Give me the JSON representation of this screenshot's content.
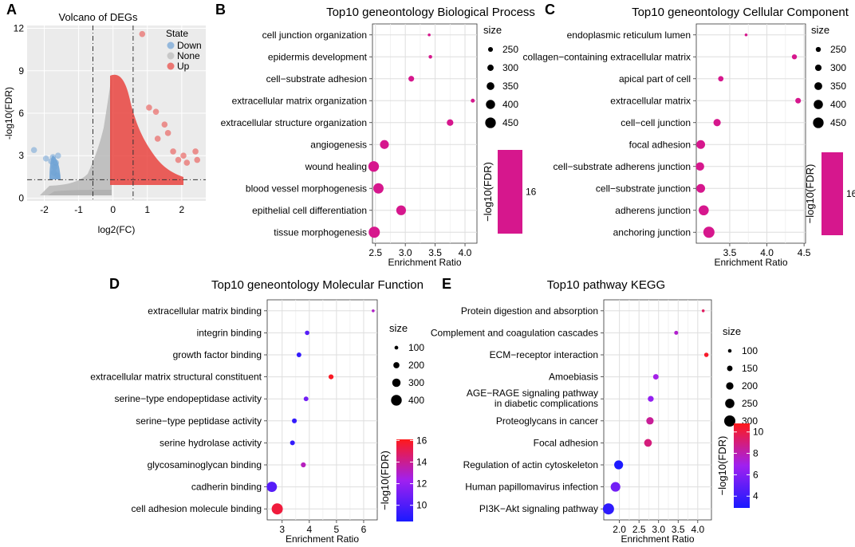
{
  "chart_data": [
    {
      "id": "volcano",
      "panel_label": "A",
      "type": "scatter",
      "title": "Volcano of DEGs",
      "xlabel": "log2(FC)",
      "ylabel": "-log10(FDR)",
      "xlim": [
        -2.5,
        2.7
      ],
      "ylim": [
        -0.2,
        12.2
      ],
      "xticks": [
        -2,
        -1,
        0,
        1,
        2
      ],
      "xtick_labels": [
        "-2",
        "-1",
        "0",
        "1",
        "2"
      ],
      "yticks": [
        0,
        3,
        6,
        9,
        12
      ],
      "ytick_labels": [
        "0",
        "3",
        "6",
        "9",
        "12"
      ],
      "thresholds": {
        "fc": 0.585,
        "fdr": 1.3
      },
      "legend_title": "State",
      "legend": [
        {
          "name": "Down",
          "color": "#6fa3d6"
        },
        {
          "name": "None",
          "color": "#b9b9b9"
        },
        {
          "name": "Up",
          "color": "#e9443f"
        }
      ],
      "series": [
        {
          "name": "Down",
          "points": [
            [
              -2.3,
              3.4
            ],
            [
              -1.95,
              2.8
            ],
            [
              -1.8,
              2.6
            ],
            [
              -1.7,
              2.2
            ],
            [
              -1.6,
              3.0
            ],
            [
              -1.72,
              1.8
            ],
            [
              -1.66,
              2.5
            ],
            [
              -1.62,
              1.6
            ],
            [
              -1.75,
              2.9
            ]
          ]
        },
        {
          "name": "Up",
          "points": [
            [
              0.85,
              11.6
            ],
            [
              1.25,
              6.1
            ],
            [
              1.05,
              6.4
            ],
            [
              1.5,
              5.2
            ],
            [
              1.75,
              3.3
            ],
            [
              1.9,
              2.7
            ],
            [
              2.05,
              3.0
            ],
            [
              2.15,
              2.5
            ],
            [
              2.4,
              3.3
            ],
            [
              2.45,
              2.7
            ],
            [
              1.3,
              4.2
            ],
            [
              1.6,
              4.6
            ]
          ]
        }
      ]
    },
    {
      "id": "bp",
      "panel_label": "B",
      "type": "scatter",
      "title": "Top10 geneontology Biological Process",
      "xlabel": "Enrichment Ratio",
      "xlim": [
        2.45,
        4.2
      ],
      "xticks": [
        2.5,
        3.0,
        3.5,
        4.0
      ],
      "xtick_labels": [
        "2.5",
        "3.0",
        "3.5",
        "4.0"
      ],
      "categories": [
        "cell junction organization",
        "epidermis development",
        "cell−substrate adhesion",
        "extracellular matrix organization",
        "extracellular structure organization",
        "angiogenesis",
        "wound healing",
        "blood vessel morphogenesis",
        "epithelial cell differentiation",
        "tissue morphogenesis"
      ],
      "values": [
        3.4,
        3.42,
        3.1,
        4.13,
        3.75,
        2.65,
        2.47,
        2.55,
        2.93,
        2.48
      ],
      "sizes": [
        180,
        205,
        280,
        220,
        310,
        390,
        450,
        440,
        420,
        470
      ],
      "fdr": [
        16,
        16,
        16,
        16,
        16,
        16,
        16,
        16,
        16,
        16
      ],
      "size_legend": {
        "title": "size",
        "levels": [
          250,
          300,
          350,
          400,
          450
        ],
        "labels": [
          "250",
          "300",
          "350",
          "400",
          "450"
        ],
        "range": [
          180,
          470
        ]
      },
      "color_legend": {
        "title": "−log10(FDR)",
        "labels": [
          "16"
        ],
        "min": 15.5,
        "max": 16.5,
        "colors": [
          "#d6178d",
          "#d6178d"
        ]
      },
      "color_fixed": "#d6178d"
    },
    {
      "id": "cc",
      "panel_label": "C",
      "type": "scatter",
      "title": "Top10 geneontology Cellular Component",
      "xlabel": "Enrichment Ratio",
      "xlim": [
        3.05,
        4.52
      ],
      "xticks": [
        3.5,
        4.0,
        4.5
      ],
      "xtick_labels": [
        "3.5",
        "4.0",
        "4.5"
      ],
      "categories": [
        "endoplasmic reticulum lumen",
        "collagen−containing extracellular matrix",
        "apical part of cell",
        "extracellular matrix",
        "cell−cell junction",
        "focal adhesion",
        "cell−substrate adherens junction",
        "cell−substrate junction",
        "adherens junction",
        "anchoring junction"
      ],
      "values": [
        3.72,
        4.37,
        3.38,
        4.42,
        3.33,
        3.11,
        3.1,
        3.11,
        3.15,
        3.22
      ],
      "sizes": [
        170,
        250,
        260,
        270,
        330,
        380,
        370,
        380,
        430,
        470
      ],
      "fdr": [
        16,
        16,
        16,
        16,
        16,
        16,
        16,
        16,
        16,
        16
      ],
      "size_legend": {
        "title": "size",
        "levels": [
          250,
          300,
          350,
          400,
          450
        ],
        "labels": [
          "250",
          "300",
          "350",
          "400",
          "450"
        ],
        "range": [
          170,
          470
        ]
      },
      "color_legend": {
        "title": "−log10(FDR)",
        "labels": [
          "16"
        ],
        "min": 15.5,
        "max": 16.5,
        "colors": [
          "#d6178d",
          "#d6178d"
        ]
      },
      "color_fixed": "#d6178d"
    },
    {
      "id": "mf",
      "panel_label": "D",
      "type": "scatter",
      "title": "Top10 geneontology Molecular Function",
      "xlabel": "Enrichment Ratio",
      "xlim": [
        2.45,
        6.5
      ],
      "xticks": [
        3,
        4,
        5,
        6
      ],
      "xtick_labels": [
        "3",
        "4",
        "5",
        "6"
      ],
      "categories": [
        "extracellular matrix binding",
        "integrin binding",
        "growth factor binding",
        "extracellular matrix structural constituent",
        "serine−type endopeptidase activity",
        "serine−type peptidase activity",
        "serine hydrolase activity",
        "glycosaminoglycan binding",
        "cadherin binding",
        "cell adhesion molecule binding"
      ],
      "values": [
        6.35,
        3.92,
        3.62,
        4.8,
        3.88,
        3.45,
        3.38,
        3.78,
        2.62,
        2.82
      ],
      "sizes": [
        60,
        130,
        140,
        150,
        140,
        145,
        145,
        150,
        380,
        420
      ],
      "fdr": [
        13.0,
        10.2,
        9.2,
        15.9,
        11.0,
        9.2,
        9.2,
        13.2,
        10.2,
        15.5
      ],
      "size_legend": {
        "title": "size",
        "levels": [
          100,
          200,
          300,
          400
        ],
        "labels": [
          "100",
          "200",
          "300",
          "400"
        ],
        "range": [
          60,
          420
        ]
      },
      "color_legend": {
        "title": "−log10(FDR)",
        "labels": [
          "10",
          "12",
          "14",
          "16"
        ],
        "ticks": [
          10,
          12,
          14,
          16
        ],
        "min": 8.5,
        "max": 16.1,
        "colors": [
          "#1a1aff",
          "#a020f0",
          "#ff1a1a"
        ]
      }
    },
    {
      "id": "kegg",
      "panel_label": "E",
      "type": "scatter",
      "title": "Top10 pathway KEGG",
      "xlabel": "Enrichment Ratio",
      "xlim": [
        1.6,
        4.35
      ],
      "xticks": [
        2.0,
        2.5,
        3.0,
        3.5,
        4.0
      ],
      "xtick_labels": [
        "2.0",
        "2.5",
        "3.0",
        "3.5",
        "4.0"
      ],
      "categories": [
        "Protein digestion and absorption",
        "Complement and coagulation cascades",
        "ECM−receptor interaction",
        "Amoebiasis",
        "AGE−RAGE signaling pathway\nin diabetic complications",
        "Proteoglycans in cancer",
        "Focal adhesion",
        "Regulation of actin cytoskeleton",
        "Human papillomavirus infection",
        "PI3K−Akt signaling pathway"
      ],
      "values": [
        4.14,
        3.45,
        4.22,
        2.93,
        2.8,
        2.78,
        2.73,
        1.98,
        1.9,
        1.72
      ],
      "sizes": [
        80,
        110,
        120,
        150,
        160,
        200,
        210,
        240,
        260,
        300
      ],
      "fdr": [
        9.5,
        7.5,
        10.5,
        7.0,
        6.5,
        8.5,
        9.0,
        3.0,
        5.5,
        3.5
      ],
      "size_legend": {
        "title": "size",
        "levels": [
          100,
          150,
          200,
          250,
          300
        ],
        "labels": [
          "100",
          "150",
          "200",
          "250",
          "300"
        ],
        "range": [
          80,
          300
        ]
      },
      "color_legend": {
        "title": "−log10(FDR)",
        "labels": [
          "4",
          "6",
          "8",
          "10"
        ],
        "ticks": [
          4,
          6,
          8,
          10
        ],
        "min": 2.9,
        "max": 10.8,
        "colors": [
          "#1a1aff",
          "#a020f0",
          "#ff1a1a"
        ]
      }
    }
  ]
}
